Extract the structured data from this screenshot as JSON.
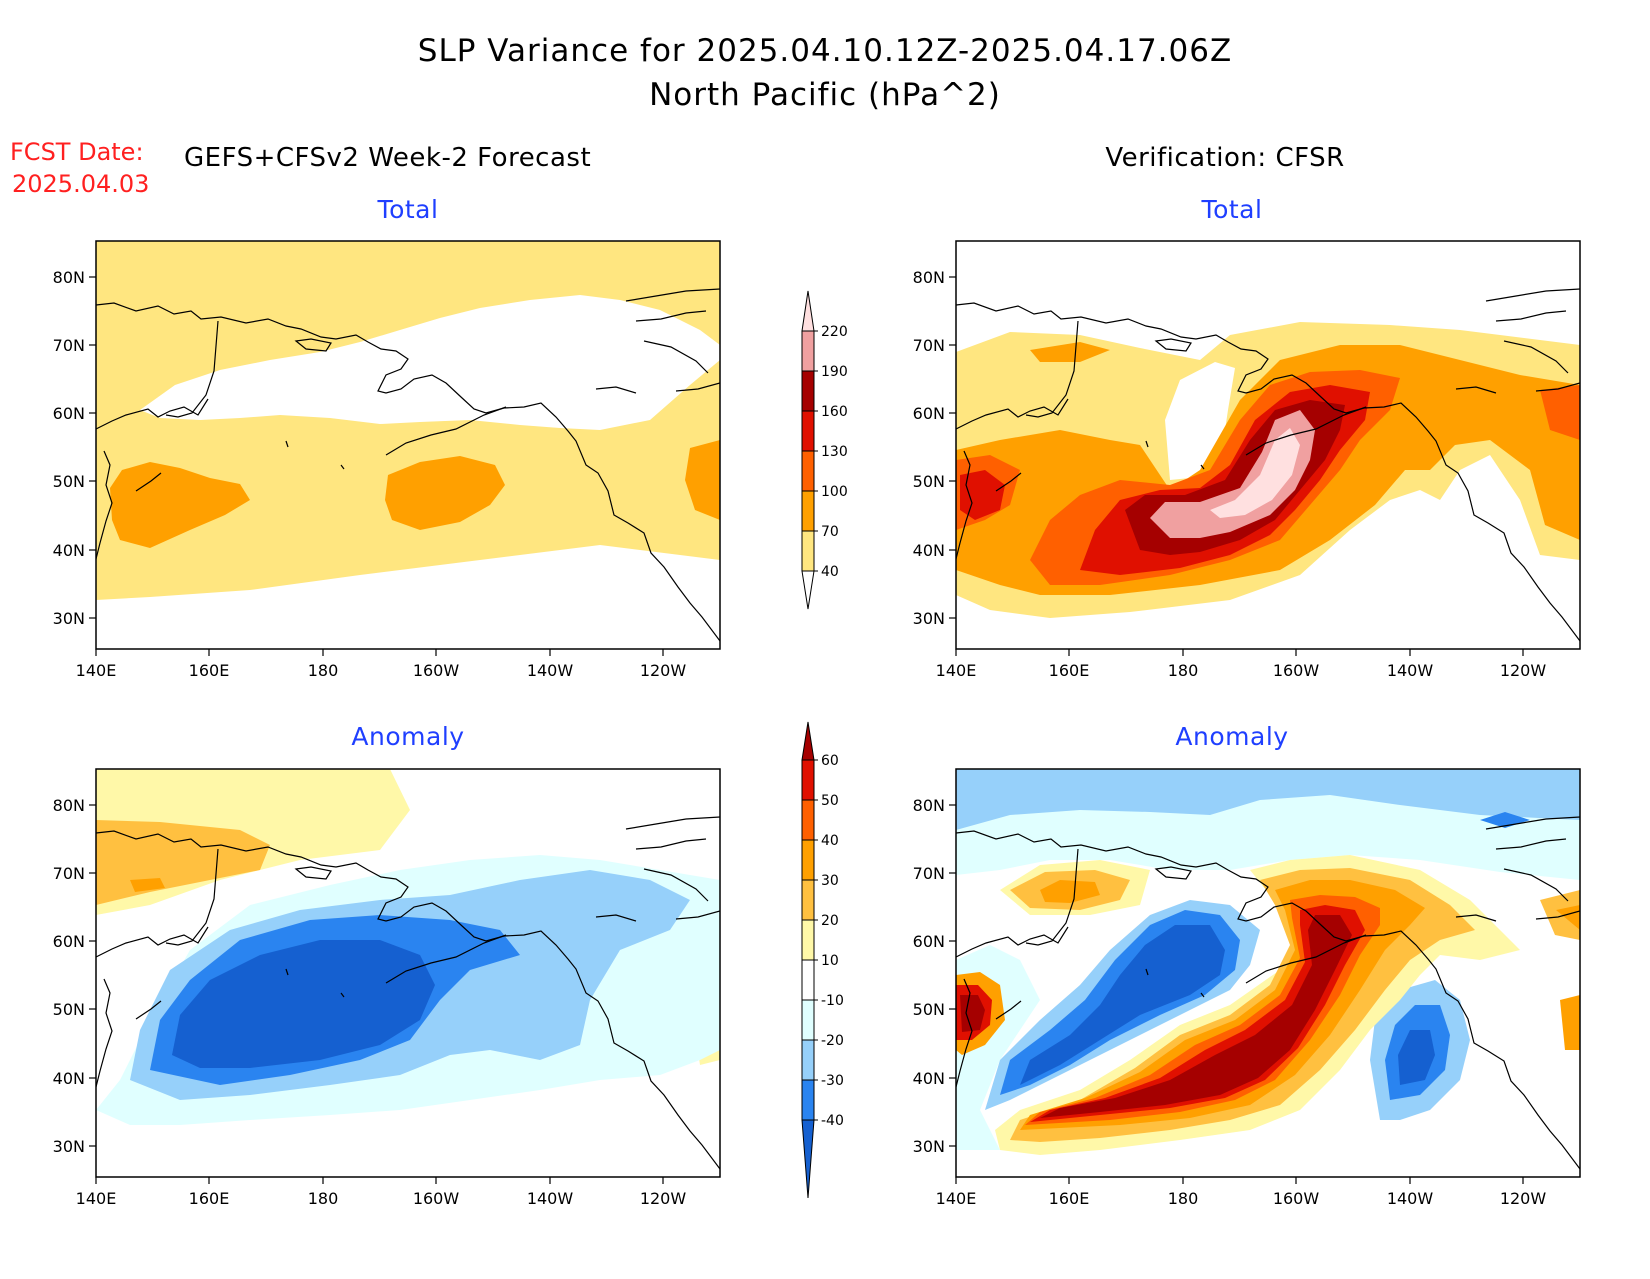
{
  "header": {
    "title_line1": "SLP Variance for 2025.04.10.12Z-2025.04.17.06Z",
    "title_line2": "North Pacific (hPa^2)",
    "fcst_label": "FCST Date:",
    "fcst_date": "2025.04.03",
    "left_column_title": "GEFS+CFSv2 Week-2 Forecast",
    "right_column_title": "Verification: CFSR"
  },
  "panels": {
    "forecast_total": {
      "title": "Total"
    },
    "verification_total": {
      "title": "Total"
    },
    "forecast_anomaly": {
      "title": "Anomaly"
    },
    "verification_anomaly": {
      "title": "Anomaly"
    }
  },
  "axes": {
    "lon_labels": [
      "140E",
      "160E",
      "180",
      "160W",
      "140W",
      "120W"
    ],
    "lat_labels": [
      "80N",
      "70N",
      "60N",
      "50N",
      "40N",
      "30N"
    ]
  },
  "colorbars": {
    "total": {
      "levels": [
        "40",
        "70",
        "100",
        "130",
        "160",
        "190",
        "220"
      ],
      "colors": [
        "#ffe680",
        "#ffa000",
        "#ff6000",
        "#e01000",
        "#a50000",
        "#f0a0a0",
        "#ffe0e0"
      ]
    },
    "anomaly": {
      "levels": [
        "-40",
        "-30",
        "-20",
        "-10",
        "10",
        "20",
        "30",
        "40",
        "50",
        "60"
      ],
      "colors": [
        "#1560d0",
        "#2a84f0",
        "#96d0fa",
        "#e0ffff",
        "#ffffff",
        "#fff8a8",
        "#ffc040",
        "#ffa000",
        "#ff6000",
        "#e01000",
        "#a50000"
      ]
    }
  }
}
